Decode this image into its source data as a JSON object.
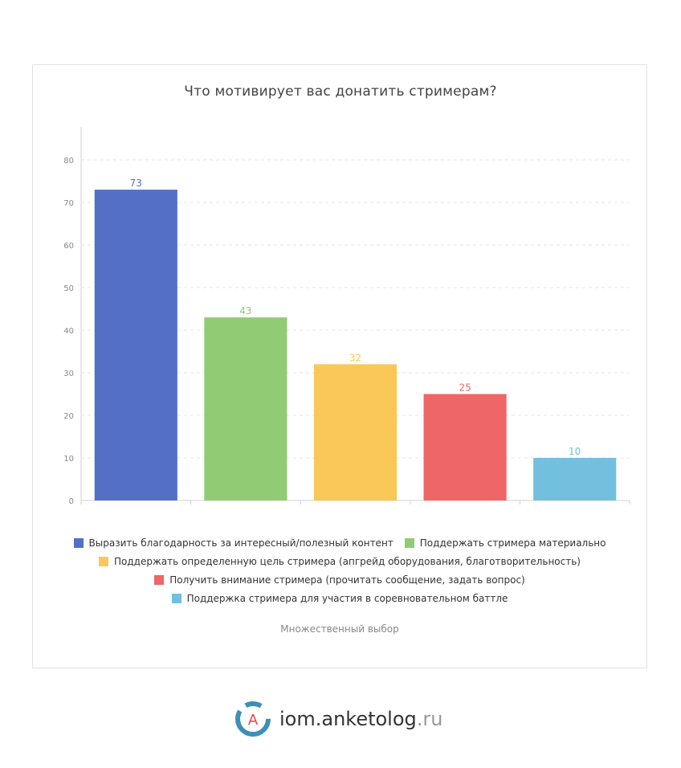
{
  "chart_data": {
    "type": "bar",
    "title": "Что мотивирует вас донатить стримерам?",
    "subtitle": "Множественный выбор",
    "categories": [
      "Выразить благодарность за интересный/полезный контент",
      "Поддержать стримера материально",
      "Поддержать определенную цель стримера (апгрейд оборудования, благотворительность)",
      "Получить внимание стримера (прочитать сообщение, задать вопрос)",
      "Поддержка стримера для участия в соревновательном баттле"
    ],
    "values": [
      73,
      43,
      32,
      25,
      10
    ],
    "colors": [
      "#5470c6",
      "#91cc75",
      "#fac858",
      "#ee6666",
      "#73c0de"
    ],
    "ylim": [
      0,
      80
    ],
    "yticks": [
      0,
      10,
      20,
      30,
      40,
      50,
      60,
      70,
      80
    ],
    "grid": true,
    "legend_position": "bottom"
  },
  "brand": {
    "logo_letter": "A",
    "name": "iom.anketolog",
    "tld": ".ru"
  }
}
